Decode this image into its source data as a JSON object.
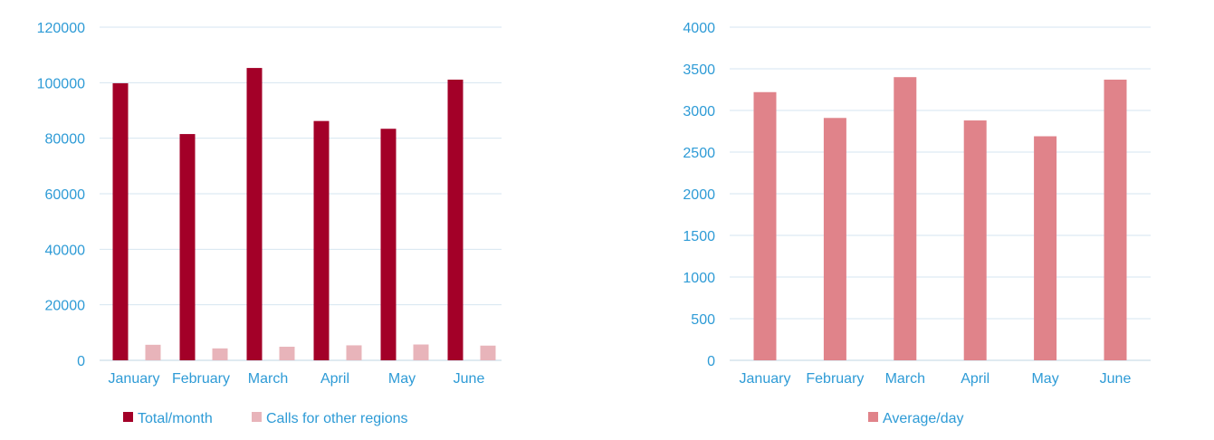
{
  "colors": {
    "axis_text": "#2E9BD6",
    "grid": "#D6E6F0",
    "baseline": "#BFD5E3",
    "total": "#A30028",
    "other_regions": "#E8B4BA",
    "average": "#E0838A"
  },
  "chart_data": [
    {
      "type": "bar",
      "categories": [
        "January",
        "February",
        "March",
        "April",
        "May",
        "June"
      ],
      "series": [
        {
          "name": "Total/month",
          "values": [
            99800,
            81500,
            105300,
            86200,
            83400,
            101100
          ]
        },
        {
          "name": "Calls for other regions",
          "values": [
            5600,
            4300,
            4900,
            5400,
            5700,
            5300
          ]
        }
      ],
      "ylim": [
        0,
        120000
      ],
      "yticks": [
        0,
        20000,
        40000,
        60000,
        80000,
        100000,
        120000
      ],
      "legend_position": "bottom",
      "grid": true
    },
    {
      "type": "bar",
      "categories": [
        "January",
        "February",
        "March",
        "April",
        "May",
        "June"
      ],
      "series": [
        {
          "name": "Average/day",
          "values": [
            3220,
            2910,
            3400,
            2880,
            2690,
            3370
          ]
        }
      ],
      "ylim": [
        0,
        4000
      ],
      "yticks": [
        0,
        500,
        1000,
        1500,
        2000,
        2500,
        3000,
        3500,
        4000
      ],
      "legend_position": "bottom",
      "grid": true
    }
  ]
}
